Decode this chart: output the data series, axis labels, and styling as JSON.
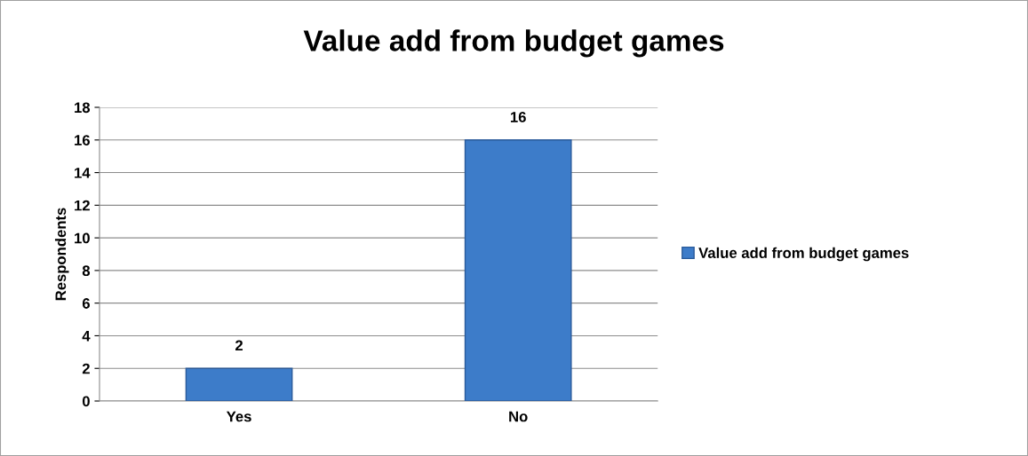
{
  "chart_data": {
    "type": "bar",
    "title": "Value add from budget games",
    "ylabel": "Respondents",
    "categories": [
      "Yes",
      "No"
    ],
    "series": [
      {
        "name": "Value add from budget games",
        "color": "#3d7cc9",
        "values": [
          2,
          16
        ]
      }
    ],
    "ylim": [
      0,
      18
    ],
    "yticks": [
      0,
      2,
      4,
      6,
      8,
      10,
      12,
      14,
      16,
      18
    ],
    "grid": "y",
    "legend": "right",
    "data_labels": true
  }
}
